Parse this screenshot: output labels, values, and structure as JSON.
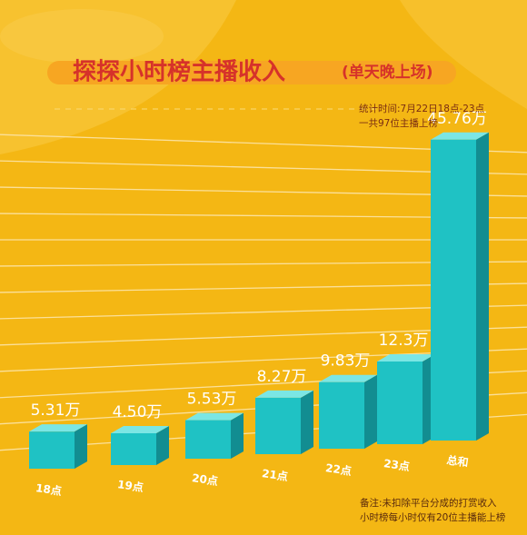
{
  "chart_data": {
    "type": "bar",
    "title": "探探小时榜主播收入",
    "subtitle": "(单天晚上场)",
    "categories": [
      "18点",
      "19点",
      "20点",
      "21点",
      "22点",
      "23点",
      "总和"
    ],
    "values": [
      5.31,
      4.5,
      5.53,
      8.27,
      9.83,
      12.3,
      45.76
    ],
    "value_labels": [
      "5.31万",
      "4.50万",
      "5.53万",
      "8.27万",
      "9.83万",
      "12.3万",
      "45.76万"
    ],
    "unit": "万",
    "ylim": [
      0,
      50
    ],
    "grid": true,
    "legend": "none"
  },
  "info": {
    "line1": "统计时间:7月22日18点-23点",
    "line2": "一共97位主播上榜"
  },
  "footnote": {
    "line1": "备注:未扣除平台分成的打赏收入",
    "line2": "小时榜每小时仅有20位主播能上榜"
  },
  "colors": {
    "background": "#f4b714",
    "title": "#d6322a",
    "bar_front": "#1fc2c4",
    "bar_top": "#7be6e4",
    "bar_side": "#128d91"
  }
}
